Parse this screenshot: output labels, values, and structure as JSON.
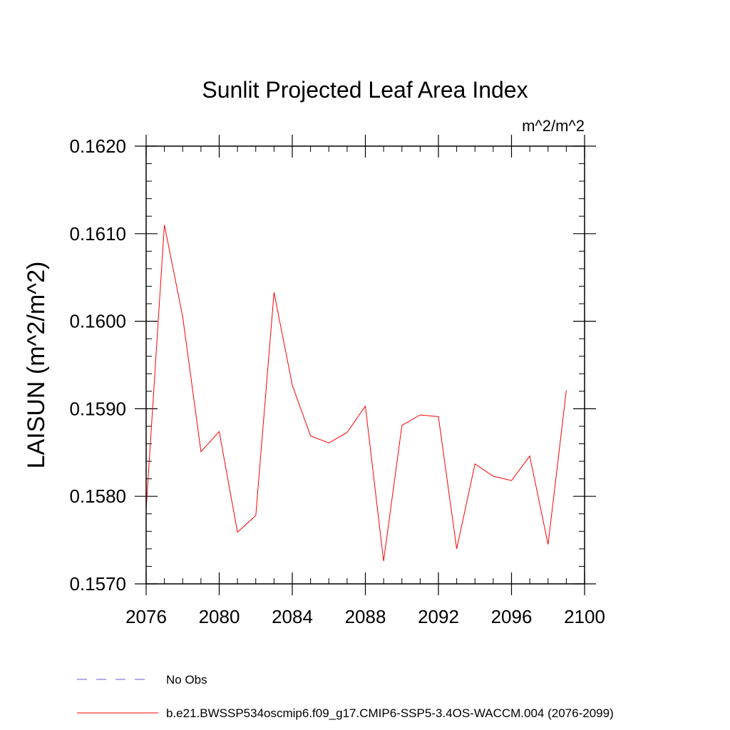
{
  "chart_data": {
    "type": "line",
    "title": "Sunlit Projected Leaf Area Index",
    "units_label": "m^2/m^2",
    "ylabel": "LAISUN  (m^2/m^2)",
    "xlabel": "",
    "xlim": [
      2076,
      2100
    ],
    "ylim": [
      0.157,
      0.162
    ],
    "xticks": [
      2076,
      2080,
      2084,
      2088,
      2092,
      2096,
      2100
    ],
    "xtick_labels": [
      "2076",
      "2080",
      "2084",
      "2088",
      "2092",
      "2096",
      "2100"
    ],
    "yticks": [
      0.157,
      0.158,
      0.159,
      0.16,
      0.161,
      0.162
    ],
    "ytick_labels": [
      "0.1570",
      "0.1580",
      "0.1590",
      "0.1600",
      "0.1610",
      "0.1620"
    ],
    "grid": false,
    "legend_position": "bottom-left",
    "series": [
      {
        "name": "b.e21.BWSSP534oscmip6.f09_g17.CMIP6-SSP5-3.4OS-WACCM.004 (2076-2099)",
        "color": "#ff0000",
        "style": "solid",
        "x": [
          2076,
          2077,
          2078,
          2079,
          2080,
          2081,
          2082,
          2083,
          2084,
          2085,
          2086,
          2087,
          2088,
          2089,
          2090,
          2091,
          2092,
          2093,
          2094,
          2095,
          2096,
          2097,
          2098,
          2099
        ],
        "y": [
          0.15785,
          0.1611,
          0.16005,
          0.15851,
          0.15874,
          0.15759,
          0.15778,
          0.16033,
          0.15927,
          0.15869,
          0.15861,
          0.15873,
          0.15903,
          0.15726,
          0.15881,
          0.15893,
          0.15891,
          0.1574,
          0.15837,
          0.15823,
          0.15818,
          0.15846,
          0.15745,
          0.15921
        ]
      }
    ],
    "legend": [
      {
        "label": "No Obs",
        "color": "#6a5acd",
        "style": "dashed"
      },
      {
        "label": "b.e21.BWSSP534oscmip6.f09_g17.CMIP6-SSP5-3.4OS-WACCM.004 (2076-2099)",
        "color": "#ff0000",
        "style": "solid"
      }
    ]
  }
}
